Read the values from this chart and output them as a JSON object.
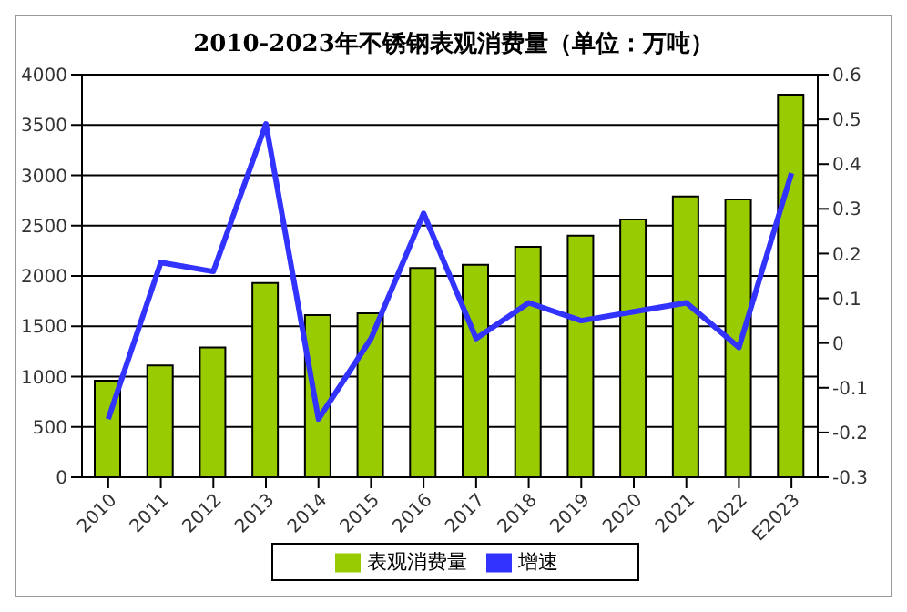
{
  "chart_data": {
    "type": "bar",
    "title": "2010-2023年不锈钢表观消费量（单位：万吨）",
    "categories": [
      "2010",
      "2011",
      "2012",
      "2013",
      "2014",
      "2015",
      "2016",
      "2017",
      "2018",
      "2019",
      "2020",
      "2021",
      "2022",
      "E2023"
    ],
    "series": [
      {
        "name": "表观消费量",
        "color": "#99cc00",
        "values": [
          960,
          1110,
          1290,
          1930,
          1610,
          1630,
          2080,
          2110,
          2290,
          2400,
          2560,
          2790,
          2760,
          3800
        ]
      },
      {
        "name": "增速",
        "type": "line",
        "axis": "y2",
        "color": "#3333ff",
        "values": [
          -0.17,
          0.18,
          0.16,
          0.49,
          -0.17,
          0.01,
          0.29,
          0.01,
          0.09,
          0.05,
          0.07,
          0.09,
          -0.01,
          0.38
        ]
      }
    ],
    "ylim": [
      0,
      4000
    ],
    "yticks": [
      0,
      500,
      1000,
      1500,
      2000,
      2500,
      3000,
      3500,
      4000
    ],
    "y2lim": [
      -0.3,
      0.6
    ],
    "y2ticks": [
      -0.3,
      -0.2,
      -0.1,
      0,
      0.1,
      0.2,
      0.3,
      0.4,
      0.5,
      0.6
    ],
    "grid": "y",
    "legend": "bottom",
    "marker": "none"
  }
}
